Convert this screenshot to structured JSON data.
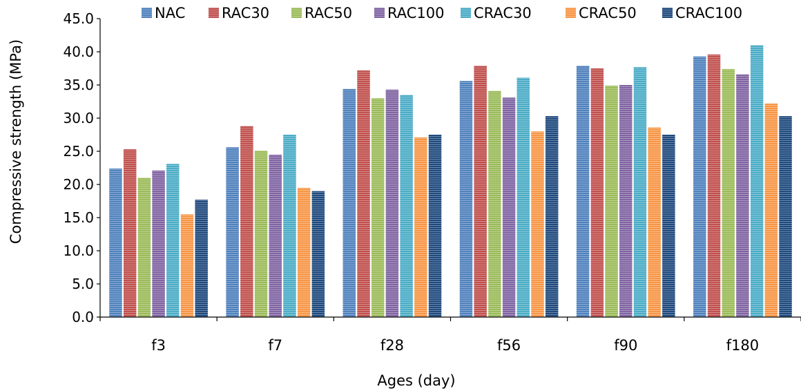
{
  "chart_data": {
    "type": "bar",
    "title": "",
    "xlabel": "Ages (day)",
    "ylabel": "Compressive strength (MPa)",
    "ylim": [
      0,
      45
    ],
    "yticks": [
      "0.0",
      "5.0",
      "10.0",
      "15.0",
      "20.0",
      "25.0",
      "30.0",
      "35.0",
      "40.0",
      "45.0"
    ],
    "categories": [
      "f3",
      "f7",
      "f28",
      "f56",
      "f90",
      "f180"
    ],
    "legend_position": "top",
    "grid": false,
    "series": [
      {
        "name": "NAC",
        "color": "#4F81BD",
        "values": [
          22.4,
          25.6,
          34.4,
          35.6,
          37.9,
          39.3
        ]
      },
      {
        "name": "RAC30",
        "color": "#C0504D",
        "values": [
          25.3,
          28.8,
          37.2,
          37.9,
          37.5,
          39.6
        ]
      },
      {
        "name": "RAC50",
        "color": "#9BBB59",
        "values": [
          21.0,
          25.1,
          33.0,
          34.1,
          34.9,
          37.4
        ]
      },
      {
        "name": "RAC100",
        "color": "#8064A2",
        "values": [
          22.1,
          24.5,
          34.3,
          33.1,
          35.0,
          36.6
        ]
      },
      {
        "name": "CRAC30",
        "color": "#4BACC6",
        "values": [
          23.1,
          27.5,
          33.5,
          36.1,
          37.7,
          41.0
        ]
      },
      {
        "name": "CRAC50",
        "color": "#F79646",
        "values": [
          15.5,
          19.5,
          27.1,
          28.0,
          28.6,
          32.2
        ]
      },
      {
        "name": "CRAC100",
        "color": "#1F497D",
        "values": [
          17.7,
          19.0,
          27.5,
          30.3,
          27.5,
          30.3
        ]
      }
    ]
  }
}
